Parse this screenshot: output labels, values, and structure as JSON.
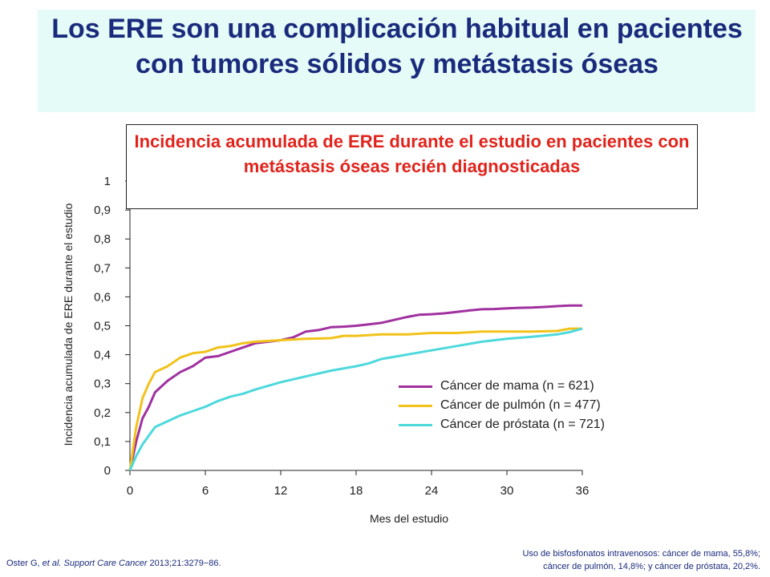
{
  "slide": {
    "title": "Los ERE son una complicación habitual en pacientes con tumores sólidos y metástasis óseas",
    "inset_title_pre": "Incidencia acumulada de ",
    "inset_title_bold": "ERE",
    "inset_title_post": " durante el estudio en pacientes con metástasis óseas recién diagnosticadas",
    "footer_citation_author": "Oster G, ",
    "footer_citation_etal": "et al.",
    "footer_citation_journal": "Support Care Cancer",
    "footer_citation_ref": " 2013;21:3279−86.",
    "footer_note_line1": "Uso de bisfosfonatos intravenosos: cáncer de mama, 55,8%;",
    "footer_note_line2": "cáncer de pulmón, 14,8%; y cáncer de próstata, 20,2%."
  },
  "colors": {
    "title": "#1a2a7c",
    "inset_title": "#e0241c",
    "band": "#e5fbf7"
  },
  "chart_data": {
    "type": "line",
    "xlabel": "Mes del estudio",
    "ylabel": "Incidencia acumulada de ERE durante el estudio",
    "xlim": [
      0,
      36
    ],
    "ylim": [
      0,
      1
    ],
    "xticks": [
      "0",
      "6",
      "12",
      "18",
      "24",
      "30",
      "36"
    ],
    "yticks": [
      "0",
      "0,1",
      "0,2",
      "0,3",
      "0,4",
      "0,5",
      "0,6",
      "0,7",
      "0,8",
      "0,9",
      "1"
    ],
    "grid": false,
    "legend_position": "bottom-right",
    "series": [
      {
        "name": "Cáncer de mama (n = 621)",
        "color": "#a0319f",
        "x": [
          0,
          0.5,
          1,
          1.5,
          2,
          3,
          4,
          5,
          6,
          7,
          8,
          9,
          10,
          11,
          12,
          13,
          14,
          15,
          16,
          17,
          18,
          19,
          20,
          21,
          22,
          23,
          24,
          25,
          26,
          27,
          28,
          29,
          30,
          31,
          32,
          33,
          34,
          35,
          36
        ],
        "y": [
          0,
          0.1,
          0.18,
          0.22,
          0.27,
          0.31,
          0.34,
          0.36,
          0.39,
          0.395,
          0.41,
          0.425,
          0.44,
          0.445,
          0.45,
          0.46,
          0.48,
          0.485,
          0.495,
          0.497,
          0.5,
          0.505,
          0.51,
          0.52,
          0.53,
          0.538,
          0.54,
          0.543,
          0.548,
          0.553,
          0.557,
          0.558,
          0.56,
          0.562,
          0.563,
          0.565,
          0.568,
          0.57,
          0.57
        ]
      },
      {
        "name": "Cáncer de pulmón (n = 477)",
        "color": "#f2c21a",
        "x": [
          0,
          0.5,
          1,
          1.5,
          2,
          3,
          4,
          5,
          6,
          7,
          8,
          9,
          10,
          12,
          14,
          16,
          17,
          18,
          20,
          22,
          24,
          26,
          28,
          30,
          32,
          34,
          35,
          36
        ],
        "y": [
          0,
          0.15,
          0.25,
          0.3,
          0.34,
          0.36,
          0.39,
          0.405,
          0.41,
          0.425,
          0.43,
          0.44,
          0.445,
          0.45,
          0.455,
          0.457,
          0.465,
          0.465,
          0.47,
          0.47,
          0.475,
          0.475,
          0.48,
          0.48,
          0.48,
          0.482,
          0.49,
          0.49
        ]
      },
      {
        "name": "Cáncer de próstata (n = 721)",
        "color": "#4dd9dc",
        "x": [
          0,
          0.5,
          1,
          2,
          3,
          4,
          5,
          6,
          7,
          8,
          9,
          10,
          12,
          14,
          16,
          18,
          19,
          20,
          22,
          24,
          26,
          28,
          30,
          32,
          34,
          35,
          36
        ],
        "y": [
          0,
          0.05,
          0.09,
          0.15,
          0.17,
          0.19,
          0.205,
          0.22,
          0.24,
          0.255,
          0.265,
          0.28,
          0.305,
          0.325,
          0.345,
          0.36,
          0.37,
          0.385,
          0.4,
          0.415,
          0.43,
          0.445,
          0.455,
          0.462,
          0.47,
          0.478,
          0.49
        ]
      }
    ]
  }
}
